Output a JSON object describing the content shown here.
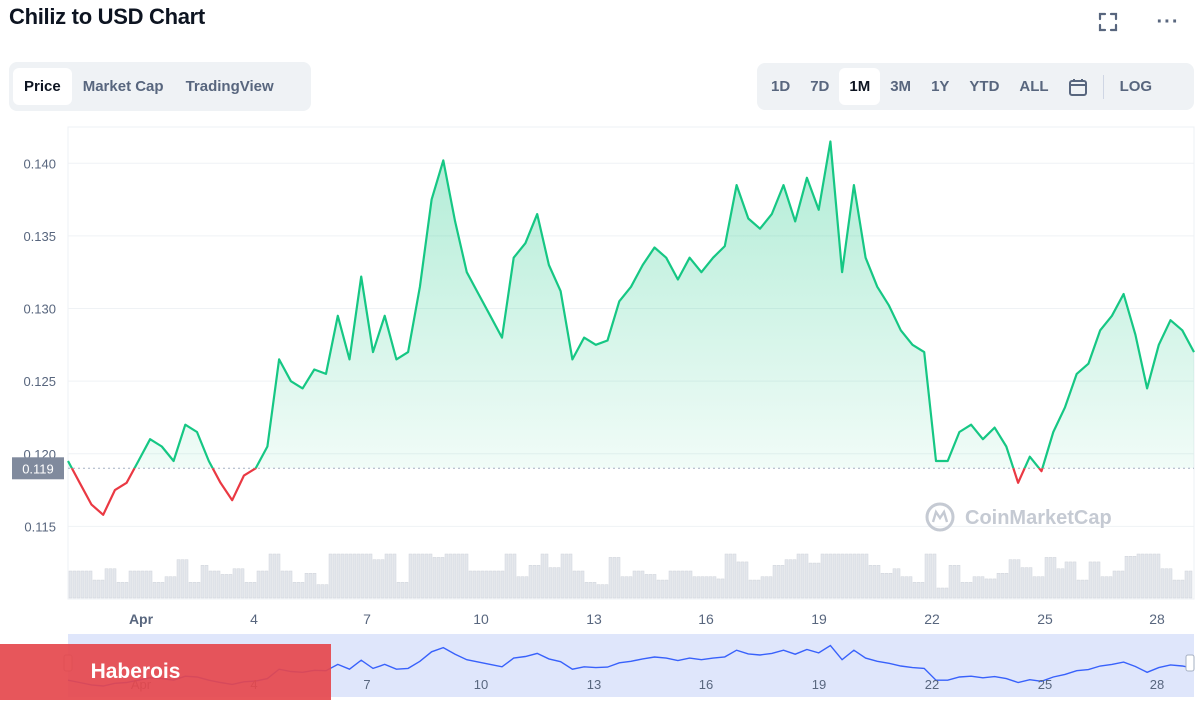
{
  "header": {
    "title": "Chiliz to USD Chart"
  },
  "tabs": [
    {
      "label": "Price",
      "active": true
    },
    {
      "label": "Market Cap",
      "active": false
    },
    {
      "label": "TradingView",
      "active": false
    }
  ],
  "ranges": [
    {
      "label": "1D"
    },
    {
      "label": "7D"
    },
    {
      "label": "1M",
      "active": true
    },
    {
      "label": "3M"
    },
    {
      "label": "1Y"
    },
    {
      "label": "YTD"
    },
    {
      "label": "ALL"
    }
  ],
  "log_label": "LOG",
  "icons": {
    "fullscreen": "fullscreen-icon",
    "more": "more-icon",
    "calendar": "calendar-icon"
  },
  "watermark": "CoinMarketCap",
  "banner": {
    "text": "Haberois"
  },
  "colors": {
    "up": "#16c784",
    "down": "#ea3943",
    "navigator_line": "#3861fb",
    "navigator_fill": "#dfe6fb",
    "banner": "#e5484d"
  },
  "chart_data": {
    "type": "line",
    "title": "",
    "xlabel": "",
    "ylabel": "",
    "grid": true,
    "ylim": [
      0.11,
      0.1425
    ],
    "y_ticks": [
      "0.115",
      "0.120",
      "0.125",
      "0.130",
      "0.135",
      "0.140"
    ],
    "x_ticks": [
      "Apr",
      "4",
      "7",
      "10",
      "13",
      "16",
      "19",
      "22",
      "25",
      "28"
    ],
    "reference_label": "0.119",
    "reference_value": 0.119,
    "series": [
      {
        "x": [
          "Mar 30",
          "Mar 30",
          "Mar 31",
          "Mar 31",
          "Mar 31",
          "Apr 1",
          "Apr 1",
          "Apr 2",
          "Apr 2",
          "Apr 2",
          "Apr 3",
          "Apr 3",
          "Apr 3",
          "Apr 3",
          "Apr 4",
          "Apr 4",
          "Apr 4",
          "Apr 5",
          "Apr 5",
          "Apr 5",
          "Apr 6",
          "Apr 6",
          "Apr 6",
          "Apr 6",
          "Apr 7",
          "Apr 7",
          "Apr 7",
          "Apr 8",
          "Apr 8",
          "Apr 8",
          "Apr 8",
          "Apr 9",
          "Apr 9",
          "Apr 9",
          "Apr 10",
          "Apr 10",
          "Apr 10",
          "Apr 11",
          "Apr 11",
          "Apr 11",
          "Apr 12",
          "Apr 12",
          "Apr 12",
          "Apr 12",
          "Apr 13",
          "Apr 13",
          "Apr 13",
          "Apr 14",
          "Apr 14",
          "Apr 14",
          "Apr 15",
          "Apr 15",
          "Apr 15",
          "Apr 16",
          "Apr 16",
          "Apr 16",
          "Apr 17",
          "Apr 17",
          "Apr 17",
          "Apr 17",
          "Apr 18",
          "Apr 18",
          "Apr 18",
          "Apr 19",
          "Apr 19",
          "Apr 19",
          "Apr 19",
          "Apr 20",
          "Apr 20",
          "Apr 20",
          "Apr 21",
          "Apr 21",
          "Apr 21",
          "Apr 21",
          "Apr 22",
          "Apr 22",
          "Apr 22",
          "Apr 23",
          "Apr 23",
          "Apr 23",
          "Apr 23",
          "Apr 24",
          "Apr 24",
          "Apr 24",
          "Apr 25",
          "Apr 25",
          "Apr 25",
          "Apr 26",
          "Apr 26",
          "Apr 26",
          "Apr 27",
          "Apr 27",
          "Apr 27",
          "Apr 28",
          "Apr 28",
          "Apr 28",
          "Apr 29"
        ],
        "values": [
          0.1195,
          0.118,
          0.1165,
          0.1158,
          0.1175,
          0.118,
          0.1195,
          0.121,
          0.1205,
          0.1195,
          0.122,
          0.1215,
          0.1195,
          0.118,
          0.1168,
          0.1185,
          0.119,
          0.1205,
          0.1265,
          0.125,
          0.1245,
          0.1258,
          0.1255,
          0.1295,
          0.1265,
          0.1322,
          0.127,
          0.1295,
          0.1265,
          0.127,
          0.1315,
          0.1375,
          0.1402,
          0.136,
          0.1325,
          0.131,
          0.1295,
          0.128,
          0.1335,
          0.1345,
          0.1365,
          0.133,
          0.1312,
          0.1265,
          0.128,
          0.1275,
          0.1278,
          0.1305,
          0.1315,
          0.133,
          0.1342,
          0.1335,
          0.132,
          0.1335,
          0.1325,
          0.1335,
          0.1343,
          0.1385,
          0.1362,
          0.1355,
          0.1365,
          0.1385,
          0.136,
          0.139,
          0.1368,
          0.1415,
          0.1325,
          0.1385,
          0.1335,
          0.1315,
          0.1302,
          0.1285,
          0.1275,
          0.127,
          0.1195,
          0.1195,
          0.1215,
          0.122,
          0.121,
          0.1218,
          0.1205,
          0.118,
          0.1198,
          0.1188,
          0.1215,
          0.1232,
          0.1255,
          0.1262,
          0.1285,
          0.1295,
          0.131,
          0.1282,
          0.1245,
          0.1275,
          0.1292,
          0.1285,
          0.127
        ]
      }
    ]
  }
}
